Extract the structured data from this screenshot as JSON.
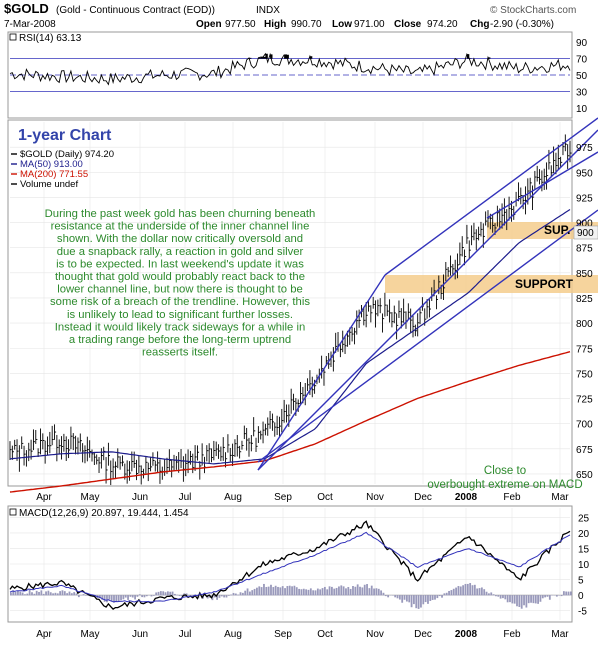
{
  "header": {
    "symbol": "$GOLD",
    "description": "(Gold - Continuous Contract (EOD))",
    "exchange": "INDX",
    "source": "© StockCharts.com",
    "date": "7-Mar-2008",
    "open_label": "Open",
    "open": "977.50",
    "high_label": "High",
    "high": "990.70",
    "low_label": "Low",
    "low": "971.00",
    "close_label": "Close",
    "close": "974.20",
    "chg_label": "Chg",
    "chg": "-2.90 (-0.30%)"
  },
  "rsi": {
    "label": "RSI(14) 63.13",
    "ticks": [
      "90",
      "70",
      "50",
      "30",
      "10"
    ]
  },
  "price": {
    "title": "1-year Chart",
    "legend": [
      {
        "text": "$GOLD (Daily) 974.20",
        "color": "#000000"
      },
      {
        "text": "MA(50) 913.00",
        "color": "#1c1c8c"
      },
      {
        "text": "MA(200) 771.55",
        "color": "#cc1100"
      },
      {
        "text": "Volume undef",
        "color": "#000000"
      }
    ],
    "y_ticks": [
      "975",
      "950",
      "925",
      "900",
      "875",
      "850",
      "825",
      "800",
      "775",
      "750",
      "725",
      "700",
      "675",
      "650"
    ],
    "current_price_label": "900",
    "commentary": "During the past week gold has been churning beneath resistance at the underside of the inner channel line shown. With the dollar now critically oversold and due a snapback rally, a reaction in gold and silver is to be expected. In last weekend's update it was thought that gold would probably react back to the lower channel line, but now there is thought to be some risk of a breach of the trendline. However, this is unlikely to lead to significant further losses. Instead it would likely track sideways for a while in a trading range before the long-term uptrend reasserts itself.",
    "support_label": "SUPPORT",
    "sup_label": "SUP.",
    "overbought_note": "Close to overbought extreme on MACD"
  },
  "macd": {
    "label": "MACD(12,26,9) 20.897, 19.444, 1.454",
    "ticks": [
      "25",
      "20",
      "15",
      "10",
      "5",
      "0",
      "-5"
    ]
  },
  "months": [
    "Apr",
    "May",
    "Jun",
    "Jul",
    "Aug",
    "Sep",
    "Oct",
    "Nov",
    "Dec",
    "2008",
    "Feb",
    "Mar"
  ],
  "colors": {
    "price_bar": "#000000",
    "ma50": "#1c1c8c",
    "ma200": "#cc1100",
    "channel": "#3333bb",
    "support_zone": "#f5cc8c",
    "annotation": "#2d8a2d",
    "title": "#3344aa",
    "rsi_fill": "#000000",
    "macd_hist": "#9999bb"
  },
  "chart_data": [
    {
      "type": "line",
      "name": "RSI(14)",
      "ylim": [
        0,
        100
      ],
      "reference_lines": [
        70,
        50,
        30
      ],
      "x": [
        "Apr",
        "May",
        "Jun",
        "Jul",
        "Aug",
        "Sep",
        "Oct",
        "Nov",
        "Dec",
        "2008",
        "Feb",
        "Mar"
      ],
      "values": [
        52,
        48,
        45,
        50,
        52,
        70,
        68,
        60,
        52,
        68,
        58,
        63.13
      ]
    },
    {
      "type": "line",
      "name": "Gold daily",
      "ylim": [
        640,
        1000
      ],
      "x": [
        "Apr",
        "May",
        "Jun",
        "Jul",
        "Aug",
        "Sep",
        "Oct",
        "Nov",
        "Dec",
        "2008",
        "Feb",
        "Mar"
      ],
      "series": [
        {
          "name": "$GOLD (Daily)",
          "values": [
            670,
            685,
            660,
            655,
            668,
            690,
            745,
            815,
            800,
            880,
            920,
            974.2
          ]
        },
        {
          "name": "MA(50)",
          "values": [
            665,
            670,
            672,
            665,
            660,
            665,
            695,
            760,
            795,
            830,
            880,
            913
          ]
        },
        {
          "name": "MA(200)",
          "values": [
            632,
            638,
            645,
            652,
            657,
            663,
            680,
            703,
            725,
            742,
            758,
            771.55
          ]
        }
      ],
      "annotations": [
        "SUPPORT",
        "SUP.",
        "Close to overbought extreme on MACD"
      ]
    },
    {
      "type": "line",
      "name": "MACD(12,26,9)",
      "ylim": [
        -8,
        28
      ],
      "x": [
        "Apr",
        "May",
        "Jun",
        "Jul",
        "Aug",
        "Sep",
        "Oct",
        "Nov",
        "Dec",
        "2008",
        "Feb",
        "Mar"
      ],
      "series": [
        {
          "name": "MACD",
          "values": [
            2,
            4,
            -4,
            -1,
            0,
            10,
            15,
            23,
            5,
            19,
            5,
            20.897
          ]
        },
        {
          "name": "Signal",
          "values": [
            1,
            3,
            -2,
            -2,
            1,
            7,
            13,
            20,
            9,
            15,
            9,
            19.444
          ]
        },
        {
          "name": "Histogram",
          "values": [
            1,
            1,
            -2,
            1,
            -1,
            3,
            2,
            3,
            -4,
            4,
            -4,
            1.454
          ]
        }
      ]
    }
  ]
}
